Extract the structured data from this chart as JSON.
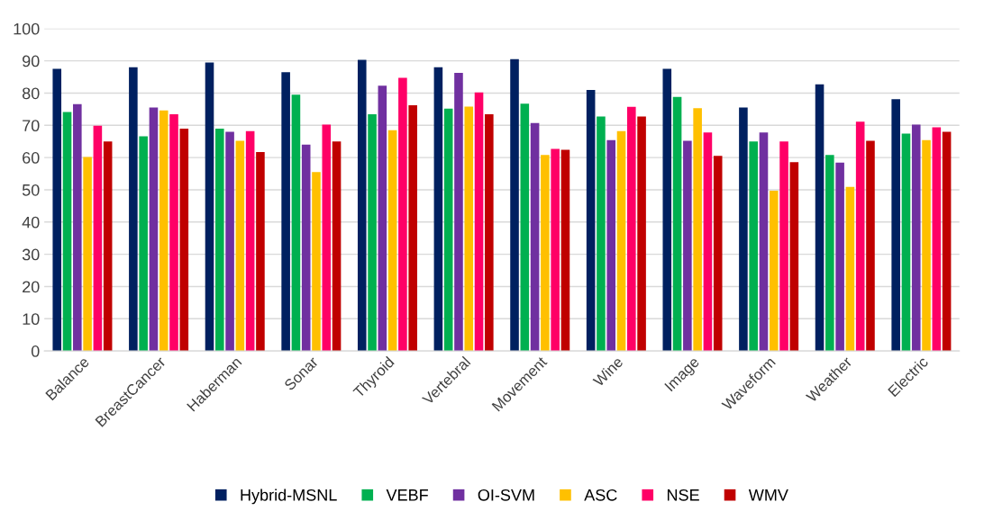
{
  "chart_data": {
    "type": "bar",
    "categories": [
      "Balance",
      "BreastCancer",
      "Haberman",
      "Sonar",
      "Thyroid",
      "Vertebral",
      "Movement",
      "Wine",
      "Image",
      "Waveform",
      "Weather",
      "Electric"
    ],
    "series": [
      {
        "name": "Hybrid-MSNL",
        "color": "#002060",
        "values": [
          87.5,
          88,
          89.5,
          86.5,
          90.3,
          88,
          90.5,
          81,
          87.5,
          75.5,
          82.7,
          78.1
        ]
      },
      {
        "name": "VEBF",
        "color": "#00b050",
        "values": [
          74.1,
          66.6,
          69,
          79.5,
          73.4,
          75.2,
          76.7,
          72.7,
          78.8,
          65,
          60.8,
          67.4
        ]
      },
      {
        "name": "OI-SVM",
        "color": "#7030a0",
        "values": [
          76.6,
          75.5,
          68,
          64,
          82.3,
          86.3,
          70.7,
          65.4,
          65.2,
          67.8,
          58.4,
          70.2
        ]
      },
      {
        "name": "ASC",
        "color": "#ffc000",
        "values": [
          60.2,
          74.6,
          65.2,
          55.5,
          68.5,
          75.8,
          60.8,
          68.2,
          75.3,
          49.7,
          50.9,
          65.4
        ]
      },
      {
        "name": "NSE",
        "color": "#ff0066",
        "values": [
          69.9,
          73.4,
          68.2,
          70.2,
          84.7,
          80.2,
          62.7,
          75.7,
          67.8,
          65,
          71.1,
          69.4
        ]
      },
      {
        "name": "WMV",
        "color": "#c00000",
        "values": [
          65,
          69,
          61.7,
          65,
          76.2,
          73.4,
          62.4,
          72.7,
          60.5,
          58.6,
          65.2,
          68
        ]
      }
    ],
    "ylim": [
      0,
      100
    ],
    "yticks": [
      0,
      10,
      20,
      30,
      40,
      50,
      60,
      70,
      80,
      90,
      100
    ],
    "grid": "y",
    "legend": "bottom"
  }
}
